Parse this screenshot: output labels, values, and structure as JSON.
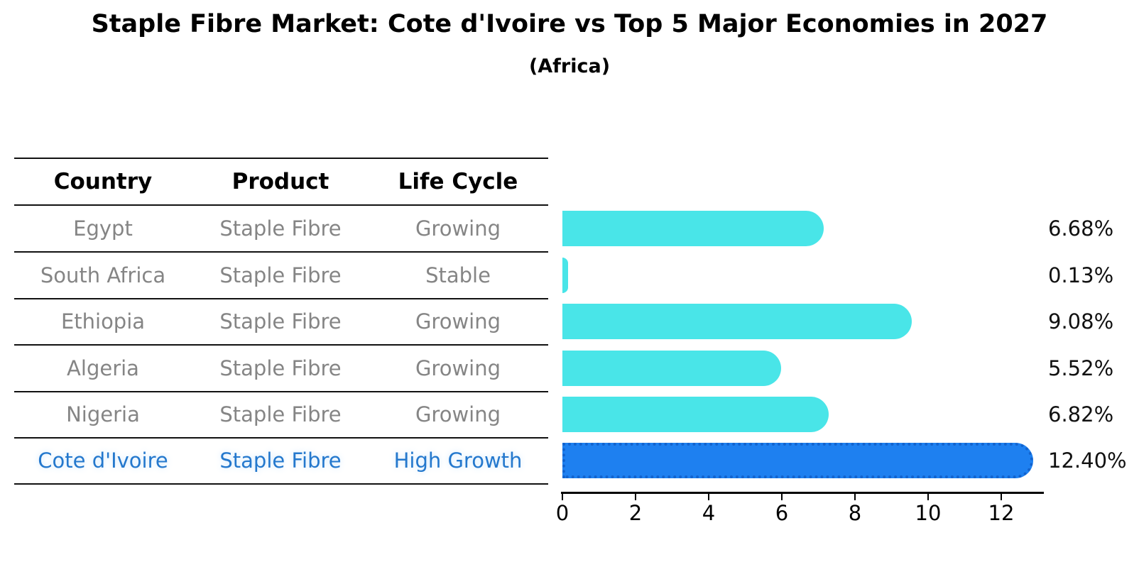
{
  "title": "Staple Fibre Market: Cote d'Ivoire vs Top 5 Major Economies in 2027",
  "subtitle": "(Africa)",
  "table": {
    "headers": [
      "Country",
      "Product",
      "Life Cycle"
    ],
    "rows": [
      {
        "country": "Egypt",
        "product": "Staple Fibre",
        "life_cycle": "Growing",
        "highlight": false
      },
      {
        "country": "South Africa",
        "product": "Staple Fibre",
        "life_cycle": "Stable",
        "highlight": false
      },
      {
        "country": "Ethiopia",
        "product": "Staple Fibre",
        "life_cycle": "Growing",
        "highlight": false
      },
      {
        "country": "Algeria",
        "product": "Staple Fibre",
        "life_cycle": "Growing",
        "highlight": false
      },
      {
        "country": "Nigeria",
        "product": "Staple Fibre",
        "life_cycle": "Growing",
        "highlight": false
      },
      {
        "country": "Cote d'Ivoire",
        "product": "Staple Fibre",
        "life_cycle": "High Growth",
        "highlight": true
      }
    ]
  },
  "chart_data": {
    "type": "bar",
    "orientation": "horizontal",
    "title": "Staple Fibre Market: Cote d'Ivoire vs Top 5 Major Economies in 2027 (Africa)",
    "categories": [
      "Egypt",
      "South Africa",
      "Ethiopia",
      "Algeria",
      "Nigeria",
      "Cote d'Ivoire"
    ],
    "values": [
      6.68,
      0.13,
      9.08,
      5.52,
      6.82,
      12.4
    ],
    "value_labels": [
      "6.68%",
      "0.13%",
      "9.08%",
      "5.52%",
      "6.82%",
      "12.40%"
    ],
    "x_ticks": [
      0,
      2,
      4,
      6,
      8,
      10,
      12
    ],
    "xlim": [
      0,
      13.2
    ],
    "grid": false,
    "legend": "none",
    "bar_color": "#49e5e8",
    "highlight_color": "#1e80f0",
    "highlight_border_color": "#1263ce",
    "highlight_index": 5
  },
  "colors": {
    "accent_blue_text": "#2478cd",
    "muted_text": "#858585",
    "bar_cyan": "#49e5e8",
    "bar_blue": "#1e80f0",
    "line_black": "#111111"
  }
}
